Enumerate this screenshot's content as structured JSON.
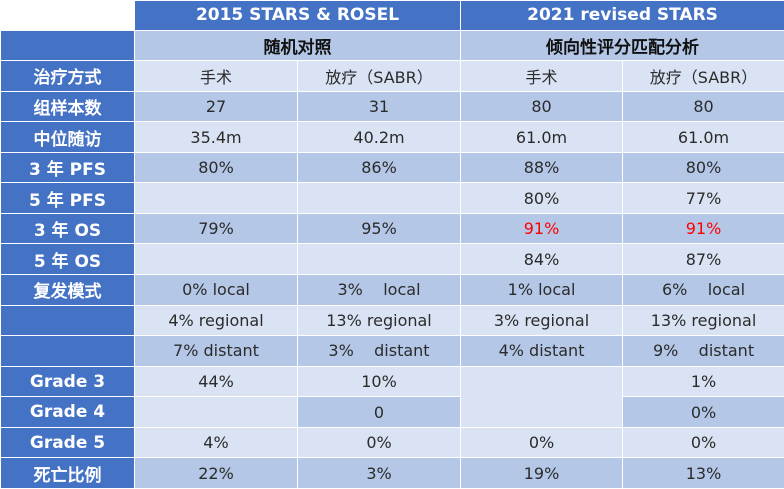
{
  "header": {
    "group1": "2015 STARS & ROSEL",
    "group2": "2021 revised STARS",
    "design1": "随机对照",
    "design2": "倾向性评分匹配分析"
  },
  "rows": {
    "treatment": {
      "label": "治疗方式",
      "c1": "手术",
      "c2": "放疗（SABR）",
      "c3": "手术",
      "c4": "放疗（SABR）"
    },
    "sample": {
      "label": "组样本数",
      "c1": "27",
      "c2": "31",
      "c3": "80",
      "c4": "80"
    },
    "followup": {
      "label": "中位随访",
      "c1": "35.4m",
      "c2": "40.2m",
      "c3": "61.0m",
      "c4": "61.0m"
    },
    "pfs3": {
      "label": "3 年  PFS",
      "c1": "80%",
      "c2": "86%",
      "c3": "88%",
      "c4": "80%"
    },
    "pfs5": {
      "label": "5 年  PFS",
      "c1": "",
      "c2": "",
      "c3": "80%",
      "c4": "77%"
    },
    "os3": {
      "label": "3 年  OS",
      "c1": "79%",
      "c2": "95%",
      "c3": "91%",
      "c4": "91%"
    },
    "os5": {
      "label": "5 年  OS",
      "c1": "",
      "c2": "",
      "c3": "84%",
      "c4": "87%"
    },
    "recurrence_local": {
      "label": "复发模式",
      "c1": "0% local",
      "c2": "3%    local",
      "c3": "1% local",
      "c4": "6%    local"
    },
    "recurrence_regional": {
      "label": "",
      "c1": "4% regional",
      "c2": "13% regional",
      "c3": "3% regional",
      "c4": "13% regional"
    },
    "recurrence_distant": {
      "label": "",
      "c1": "7% distant",
      "c2": "3%    distant",
      "c3": "4% distant",
      "c4": "9%    distant"
    },
    "grade3": {
      "label": "Grade 3",
      "c1": "44%",
      "c2": "10%",
      "c3": "",
      "c4": "1%"
    },
    "grade4": {
      "label": "Grade 4",
      "c1": "",
      "c2": "0",
      "c3": "",
      "c4": "0%"
    },
    "grade5": {
      "label": "Grade 5",
      "c1": "4%",
      "c2": "0%",
      "c3": "0%",
      "c4": "0%"
    },
    "mortality": {
      "label": "死亡比例",
      "c1": "22%",
      "c2": "3%",
      "c3": "19%",
      "c4": "13%"
    }
  },
  "colors": {
    "header_blue": "#4472c4",
    "band_dark": "#b4c7e7",
    "band_light": "#dae3f3",
    "highlight_red": "#ff0000"
  }
}
